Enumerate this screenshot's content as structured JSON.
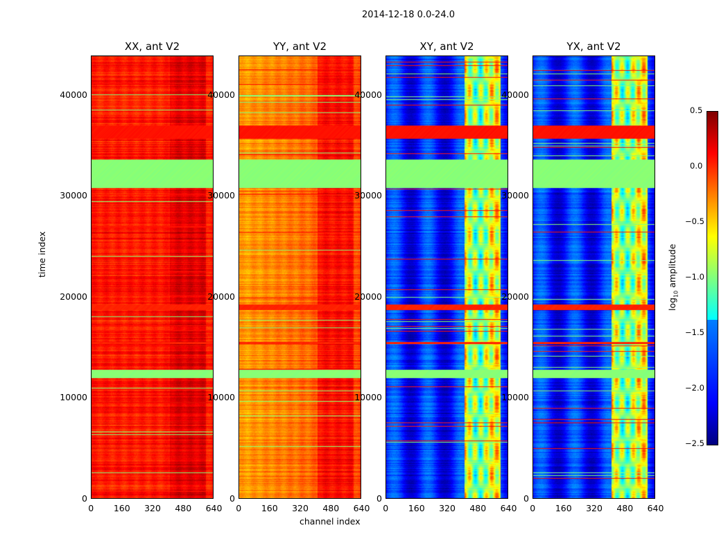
{
  "chart_data": {
    "type": "heatmap",
    "title": "2014-12-18 0.0-24.0",
    "xlabel": "channel index",
    "ylabel": "time index",
    "xlim": [
      0,
      640
    ],
    "ylim": [
      0,
      43900
    ],
    "xticks": [
      "0",
      "160",
      "320",
      "480",
      "640"
    ],
    "yticks": [
      "0",
      "10000",
      "20000",
      "30000",
      "40000"
    ],
    "ytick_values": [
      0,
      10000,
      20000,
      30000,
      40000
    ],
    "xtick_values": [
      0,
      160,
      320,
      480,
      640
    ],
    "colormap": "jet",
    "panels": [
      {
        "title": "XX, ant V2",
        "base_level": 0.0,
        "high_channel_level": 0.15
      },
      {
        "title": "YY, ant V2",
        "base_level": -0.4,
        "high_channel_level": 0.05
      },
      {
        "title": "XY, ant V2",
        "base_level": -2.1,
        "high_channel_level": -0.9
      },
      {
        "title": "YX, ant V2",
        "base_level": -2.1,
        "high_channel_level": -0.9
      }
    ],
    "high_channel_range": [
      410,
      600
    ],
    "flagged_bands": [
      {
        "from": 12000,
        "to": 12800,
        "level": -1.0
      },
      {
        "from": 30800,
        "to": 33600,
        "level": -1.0
      },
      {
        "from": 15350,
        "to": 15550,
        "level": 0.0
      },
      {
        "from": 18700,
        "to": 19300,
        "level": 0.0
      },
      {
        "from": 35700,
        "to": 37000,
        "level": 0.05
      }
    ],
    "colorbar": {
      "label": "log10 amplitude",
      "label_main": "log",
      "label_sub": "10",
      "label_rest": " amplitude",
      "clim": [
        -2.5,
        0.5
      ],
      "ticks": [
        "0.5",
        "0.0",
        "−0.5",
        "−1.0",
        "−1.5",
        "−2.0",
        "−2.5"
      ],
      "tick_values": [
        0.5,
        0.0,
        -0.5,
        -1.0,
        -1.5,
        -2.0,
        -2.5
      ]
    }
  }
}
